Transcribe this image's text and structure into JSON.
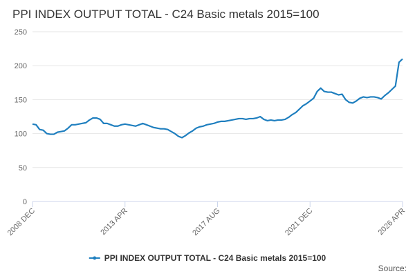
{
  "chart_data": {
    "type": "line",
    "title": "PPI INDEX OUTPUT TOTAL - C24 Basic metals 2015=100",
    "source": "Source:",
    "categories": [
      "2008 DEC",
      null,
      null,
      null,
      null,
      null,
      null,
      null,
      null,
      null,
      null,
      null,
      null,
      null,
      null,
      null,
      null,
      null,
      null,
      null,
      null,
      null,
      null,
      null,
      null,
      null,
      "2013 APR",
      null,
      null,
      null,
      null,
      null,
      null,
      null,
      null,
      null,
      null,
      null,
      null,
      null,
      null,
      null,
      null,
      null,
      null,
      null,
      null,
      null,
      null,
      null,
      null,
      null,
      "2017 AUG",
      null,
      null,
      null,
      null,
      null,
      null,
      null,
      null,
      null,
      null,
      null,
      null,
      null,
      null,
      null,
      null,
      null,
      null,
      null,
      null,
      null,
      null,
      null,
      null,
      null,
      "2021 DEC",
      null,
      null,
      null,
      null,
      null,
      null,
      null,
      null,
      null,
      null,
      null,
      null,
      null,
      null,
      null,
      null,
      null,
      null,
      null,
      null,
      null,
      null,
      null,
      null,
      null,
      "2026 APR"
    ],
    "series": [
      {
        "name": "PPI INDEX OUTPUT TOTAL - C24 Basic metals 2015=100",
        "color": "#1f7fbf",
        "values": [
          114,
          113,
          106,
          105,
          100,
          99,
          99,
          102,
          103,
          104,
          108,
          113,
          113,
          114,
          115,
          116,
          120,
          123,
          123,
          121,
          115,
          115,
          113,
          111,
          111,
          113,
          114,
          113,
          112,
          111,
          113,
          115,
          113,
          111,
          109,
          108,
          107,
          107,
          106,
          103,
          100,
          96,
          94,
          97,
          101,
          104,
          108,
          110,
          111,
          113,
          114,
          115,
          117,
          118,
          118,
          119,
          120,
          121,
          122,
          122,
          121,
          122,
          122,
          123,
          125,
          121,
          119,
          120,
          119,
          120,
          120,
          121,
          124,
          128,
          131,
          136,
          141,
          144,
          148,
          152,
          162,
          167,
          162,
          161,
          161,
          159,
          157,
          158,
          150,
          146,
          145,
          148,
          152,
          154,
          153,
          154,
          154,
          153,
          151,
          156,
          160,
          165,
          170,
          205,
          210
        ]
      }
    ],
    "ylim": [
      0,
      250
    ],
    "yticks": [
      0,
      50,
      100,
      150,
      200,
      250
    ],
    "grid": true,
    "legend": "bottom"
  }
}
